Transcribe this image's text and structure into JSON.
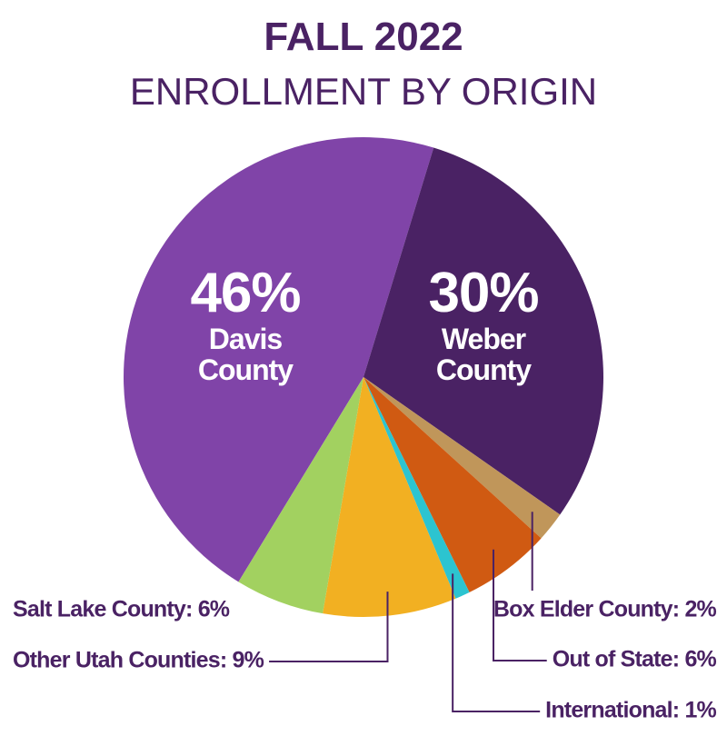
{
  "chart_data": {
    "type": "pie",
    "title": "FALL 2022",
    "subtitle": "ENROLLMENT BY ORIGIN",
    "categories": [
      "Davis County",
      "Weber County",
      "Box Elder County: 2%",
      "Out of State: 6%",
      "International: 1%",
      "Other Utah Counties: 9%",
      "Salt Lake County: 6%"
    ],
    "values": [
      46,
      30,
      2,
      6,
      1,
      9,
      6
    ],
    "value_labels": [
      "46%",
      "30%",
      null,
      null,
      null,
      null,
      null
    ],
    "colors": [
      "#8044a8",
      "#4a2264",
      "#c0965a",
      "#d05a12",
      "#2cc4d0",
      "#f2b022",
      "#a2d160"
    ]
  }
}
